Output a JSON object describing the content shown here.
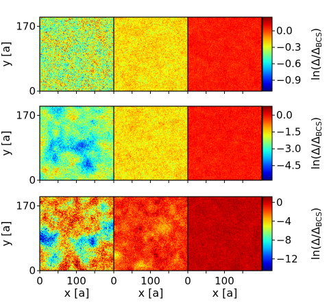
{
  "chart_data": [
    {
      "type": "heatmap",
      "row": 1,
      "ylabel": "y [a]",
      "y_ticks": [
        0,
        170
      ],
      "x_ticks": [],
      "colorbar": {
        "label": "ln(Δ/Δ_BCS)",
        "label_main": "ln(Δ/Δ",
        "label_sub": "BCS",
        "label_end": ")",
        "range": [
          -1.1,
          0.25
        ],
        "ticks": [
          0.0,
          -0.3,
          -0.6,
          -0.9
        ],
        "tick_labels": [
          "0.0",
          "−0.3",
          "−0.6",
          "−0.9"
        ]
      },
      "panels": [
        {
          "mean": -0.35,
          "spread": 0.22,
          "clusters": 0
        },
        {
          "mean": -0.22,
          "spread": 0.09,
          "clusters": 0
        },
        {
          "mean": 0.05,
          "spread": 0.045,
          "clusters": 0
        }
      ]
    },
    {
      "type": "heatmap",
      "row": 2,
      "ylabel": "y [a]",
      "y_ticks": [
        0,
        170
      ],
      "x_ticks": [],
      "colorbar": {
        "label": "ln(Δ/Δ_BCS)",
        "label_main": "ln(Δ/Δ",
        "label_sub": "BCS",
        "label_end": ")",
        "range": [
          -5.8,
          0.8
        ],
        "ticks": [
          0.0,
          -1.5,
          -3.0,
          -4.5
        ],
        "tick_labels": [
          "0.0",
          "−1.5",
          "−3.0",
          "−4.5"
        ]
      },
      "panels": [
        {
          "mean": -2.3,
          "spread": 0.65,
          "clusters": 5
        },
        {
          "mean": -1.5,
          "spread": 0.42,
          "clusters": 0
        },
        {
          "mean": -0.15,
          "spread": 0.22,
          "clusters": 0
        }
      ]
    },
    {
      "type": "heatmap",
      "row": 3,
      "ylabel": "y [a]",
      "xlabel": "x [a]",
      "y_ticks": [
        0,
        170
      ],
      "x_ticks": [
        0,
        100
      ],
      "colorbar": {
        "label": "ln(Δ/Δ_BCS)",
        "label_main": "ln(Δ/Δ",
        "label_sub": "BCS",
        "label_end": ")",
        "range": [
          -14.5,
          1.2
        ],
        "ticks": [
          0,
          -4,
          -8,
          -12
        ],
        "tick_labels": [
          "0",
          "−4",
          "−8",
          "−12"
        ]
      },
      "panels": [
        {
          "mean": -3.2,
          "spread": 2.4,
          "clusters": 9
        },
        {
          "mean": -1.3,
          "spread": 1.05,
          "clusters": 3
        },
        {
          "mean": 0.15,
          "spread": 0.45,
          "clusters": 0
        }
      ]
    }
  ]
}
